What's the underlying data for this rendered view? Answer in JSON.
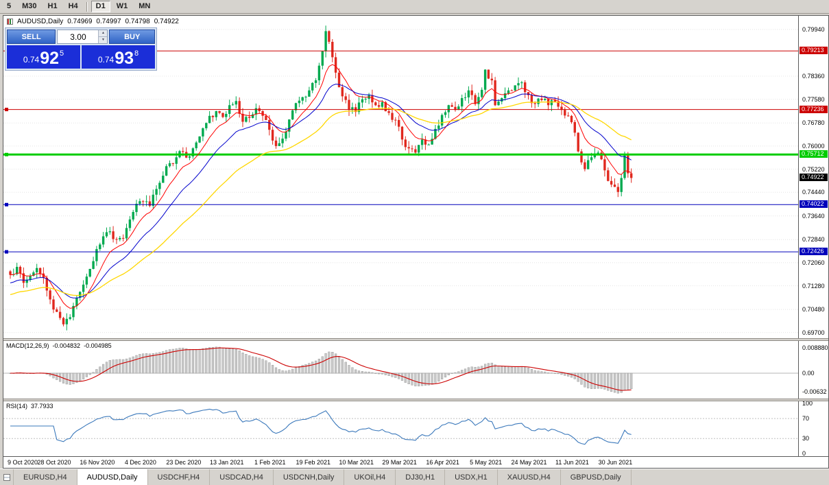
{
  "toolbar": {
    "timeframes": [
      {
        "label": "5",
        "active": false
      },
      {
        "label": "M30",
        "active": false
      },
      {
        "label": "H1",
        "active": false
      },
      {
        "label": "H4",
        "active": false
      },
      {
        "label": "D1",
        "active": true
      },
      {
        "label": "W1",
        "active": false
      },
      {
        "label": "MN",
        "active": false
      }
    ]
  },
  "chart_header": {
    "symbol_title": "AUDUSD,Daily",
    "open": "0.74969",
    "high": "0.74997",
    "low": "0.74798",
    "close": "0.74922"
  },
  "trade_panel": {
    "sell_label": "SELL",
    "buy_label": "BUY",
    "lot_value": "3.00",
    "sell_price": {
      "big": "0.74",
      "pips": "92",
      "pipette": "5"
    },
    "buy_price": {
      "big": "0.74",
      "pips": "93",
      "pipette": "8"
    }
  },
  "chart_data": {
    "main": {
      "type": "candlestick",
      "symbol": "AUDUSD",
      "timeframe": "Daily",
      "ylim": [
        0.6951,
        0.804
      ],
      "total_slots": 236,
      "data_bars": 188,
      "bars_per_label": 13,
      "colors": {
        "bull": "#00a94f",
        "bear": "#e0281e"
      },
      "y_axis_labels": [
        "0.79940",
        "0.78360",
        "0.77580",
        "0.76780",
        "0.76000",
        "0.75220",
        "0.74440",
        "0.73640",
        "0.72840",
        "0.72060",
        "0.71280",
        "0.70480",
        "0.69700"
      ],
      "x_axis_labels": [
        "9 Oct 2020",
        "28 Oct 2020",
        "16 Nov 2020",
        "4 Dec 2020",
        "23 Dec 2020",
        "13 Jan 2021",
        "1 Feb 2021",
        "19 Feb 2021",
        "10 Mar 2021",
        "29 Mar 2021",
        "16 Apr 2021",
        "5 May 2021",
        "24 May 2021",
        "11 Jun 2021",
        "30 Jun 2021"
      ],
      "price_anchors": [
        [
          0,
          0.7165
        ],
        [
          2,
          0.7192
        ],
        [
          4,
          0.7138
        ],
        [
          6,
          0.7162
        ],
        [
          8,
          0.7188
        ],
        [
          10,
          0.7155
        ],
        [
          12,
          0.7082
        ],
        [
          14,
          0.704
        ],
        [
          16,
          0.6998
        ],
        [
          18,
          0.7022
        ],
        [
          20,
          0.7088
        ],
        [
          22,
          0.7132
        ],
        [
          24,
          0.7185
        ],
        [
          26,
          0.7252
        ],
        [
          28,
          0.7295
        ],
        [
          30,
          0.7312
        ],
        [
          32,
          0.7285
        ],
        [
          34,
          0.7288
        ],
        [
          36,
          0.7352
        ],
        [
          38,
          0.7405
        ],
        [
          40,
          0.7412
        ],
        [
          42,
          0.7398
        ],
        [
          44,
          0.7455
        ],
        [
          46,
          0.75
        ],
        [
          48,
          0.7542
        ],
        [
          50,
          0.7562
        ],
        [
          52,
          0.758
        ],
        [
          54,
          0.7565
        ],
        [
          56,
          0.7612
        ],
        [
          58,
          0.766
        ],
        [
          60,
          0.7702
        ],
        [
          62,
          0.7718
        ],
        [
          64,
          0.7698
        ],
        [
          66,
          0.7738
        ],
        [
          68,
          0.7752
        ],
        [
          70,
          0.7682
        ],
        [
          72,
          0.7695
        ],
        [
          74,
          0.7728
        ],
        [
          76,
          0.7702
        ],
        [
          78,
          0.7655
        ],
        [
          80,
          0.76
        ],
        [
          82,
          0.7625
        ],
        [
          84,
          0.769
        ],
        [
          86,
          0.7745
        ],
        [
          88,
          0.7765
        ],
        [
          90,
          0.7788
        ],
        [
          92,
          0.7822
        ],
        [
          94,
          0.792
        ],
        [
          95,
          0.7988
        ],
        [
          96,
          0.7952
        ],
        [
          98,
          0.7848
        ],
        [
          100,
          0.7768
        ],
        [
          102,
          0.7722
        ],
        [
          104,
          0.7715
        ],
        [
          106,
          0.7758
        ],
        [
          108,
          0.7772
        ],
        [
          110,
          0.7738
        ],
        [
          112,
          0.7748
        ],
        [
          114,
          0.7712
        ],
        [
          116,
          0.7688
        ],
        [
          118,
          0.7622
        ],
        [
          120,
          0.7592
        ],
        [
          122,
          0.7578
        ],
        [
          124,
          0.7622
        ],
        [
          126,
          0.7605
        ],
        [
          128,
          0.7658
        ],
        [
          130,
          0.7705
        ],
        [
          132,
          0.7738
        ],
        [
          134,
          0.7722
        ],
        [
          136,
          0.7762
        ],
        [
          138,
          0.7788
        ],
        [
          140,
          0.7742
        ],
        [
          142,
          0.779
        ],
        [
          143,
          0.7858
        ],
        [
          145,
          0.7822
        ],
        [
          146,
          0.7738
        ],
        [
          148,
          0.7762
        ],
        [
          150,
          0.7788
        ],
        [
          152,
          0.7805
        ],
        [
          154,
          0.7815
        ],
        [
          156,
          0.7772
        ],
        [
          158,
          0.7742
        ],
        [
          160,
          0.7755
        ],
        [
          162,
          0.7738
        ],
        [
          164,
          0.7748
        ],
        [
          166,
          0.7722
        ],
        [
          168,
          0.7702
        ],
        [
          170,
          0.7645
        ],
        [
          171,
          0.7582
        ],
        [
          172,
          0.7545
        ],
        [
          173,
          0.7522
        ],
        [
          175,
          0.7562
        ],
        [
          177,
          0.7578
        ],
        [
          179,
          0.7518
        ],
        [
          180,
          0.7482
        ],
        [
          182,
          0.7462
        ],
        [
          183,
          0.7445
        ],
        [
          184,
          0.7492
        ],
        [
          185,
          0.7568
        ],
        [
          186,
          0.7508
        ],
        [
          187,
          0.74922
        ]
      ],
      "moving_averages": [
        {
          "period": 9,
          "color": "#ff0000",
          "width": 1
        },
        {
          "period": 20,
          "color": "#0000cc",
          "width": 1
        },
        {
          "period": 45,
          "color": "#ffd700",
          "width": 1.3
        }
      ],
      "levels": [
        {
          "price": 0.79213,
          "label": "0.79213",
          "color": "#cc0000",
          "thickness": 1
        },
        {
          "price": 0.77236,
          "label": "0.77236",
          "color": "#cc0000",
          "thickness": 1
        },
        {
          "price": 0.75712,
          "label": "0.75712",
          "color": "#00cc00",
          "thickness": 3
        },
        {
          "price": 0.74022,
          "label": "0.74022",
          "color": "#0000bb",
          "thickness": 1
        },
        {
          "price": 0.72426,
          "label": "0.72426",
          "color": "#0000bb",
          "thickness": 1
        }
      ],
      "current_price": {
        "value": 0.74922,
        "label": "0.74922",
        "color": "#000000"
      }
    },
    "macd": {
      "type": "macd",
      "label": "MACD(12,26,9)",
      "value_main": "-0.004832",
      "value_signal": "-0.004985",
      "fast": 12,
      "slow": 26,
      "signal": 9,
      "ylim": [
        -0.0088,
        0.0112
      ],
      "y_axis_labels": [
        "0.008880",
        "0.00",
        "-0.00632"
      ],
      "histogram_color": "#c9c9c9",
      "histogram_border": "#8e8e8e",
      "signal_color": "#cc0000"
    },
    "rsi": {
      "type": "rsi",
      "label": "RSI(14)",
      "value": "37.7933",
      "period": 14,
      "ylim": [
        -5.5,
        104.5
      ],
      "levels": [
        70,
        30
      ],
      "y_axis_labels": [
        "100",
        "70",
        "30",
        "0"
      ],
      "line_color": "#3a78bb"
    }
  },
  "tabs": {
    "items": [
      "EURUSD,H4",
      "AUDUSD,Daily",
      "USDCHF,H4",
      "USDCAD,H4",
      "USDCNH,Daily",
      "UKOil,H4",
      "DJ30,H1",
      "USDX,H1",
      "XAUUSD,H4",
      "GBPUSD,Daily"
    ],
    "active_index": 1
  }
}
